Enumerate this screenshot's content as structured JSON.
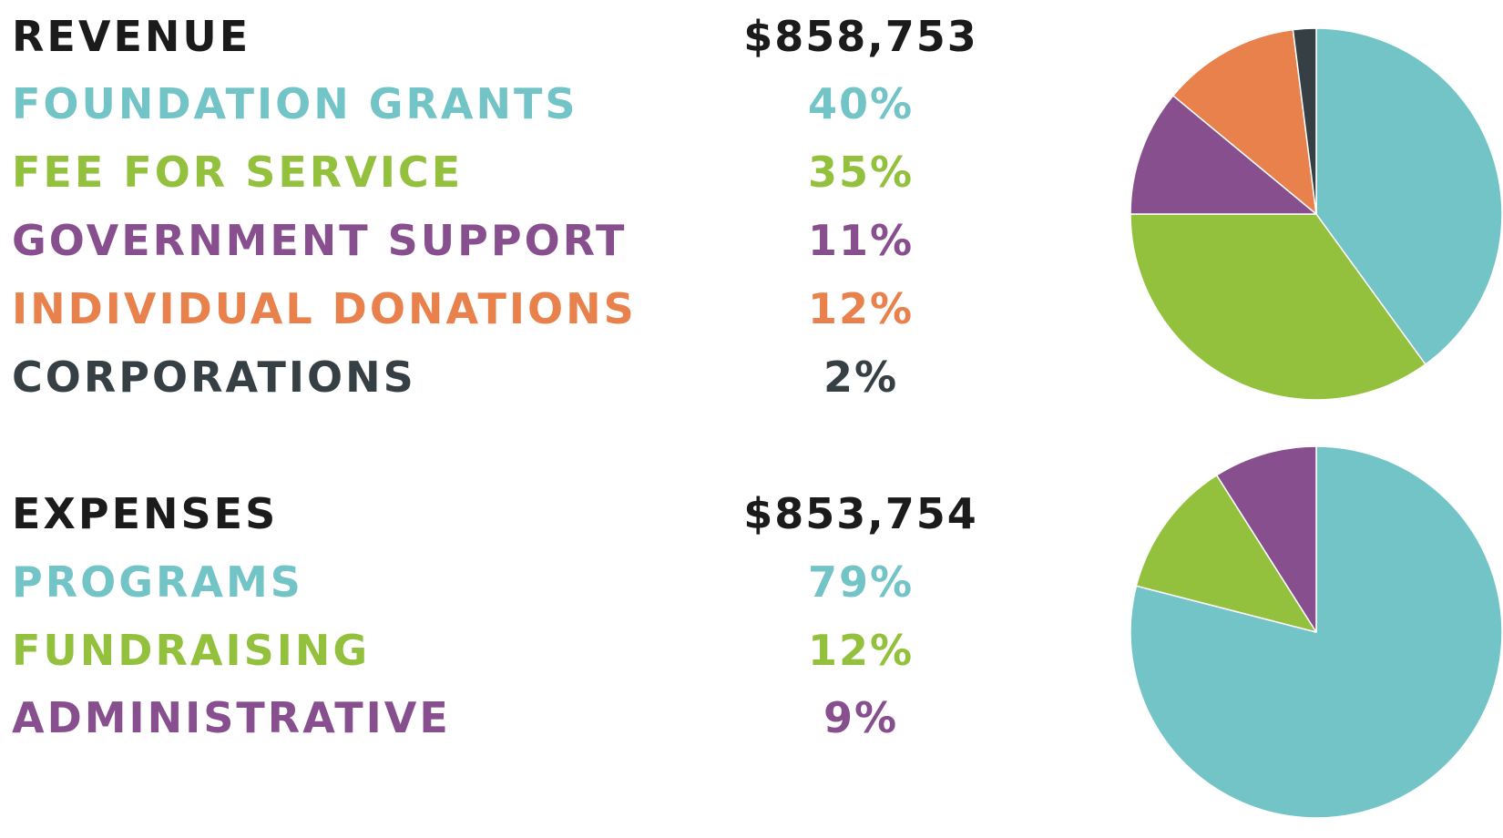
{
  "colors": {
    "teal": "#72c4c7",
    "green": "#93c13e",
    "purple": "#874f8e",
    "orange": "#e8814b",
    "dark": "#353f44",
    "black": "#1b1b1b"
  },
  "chart_data": [
    {
      "type": "pie",
      "heading": "REVENUE",
      "total": "$858,753",
      "slices": [
        {
          "label": "FOUNDATION GRANTS",
          "pct_label": "40%",
          "value": 40,
          "color": "#72c4c7"
        },
        {
          "label": "FEE FOR SERVICE",
          "pct_label": "35%",
          "value": 35,
          "color": "#93c13e"
        },
        {
          "label": "GOVERNMENT SUPPORT",
          "pct_label": "11%",
          "value": 11,
          "color": "#874f8e"
        },
        {
          "label": "INDIVIDUAL DONATIONS",
          "pct_label": "12%",
          "value": 12,
          "color": "#e8814b"
        },
        {
          "label": "CORPORATIONS",
          "pct_label": "2%",
          "value": 2,
          "color": "#353f44"
        }
      ]
    },
    {
      "type": "pie",
      "heading": "EXPENSES",
      "total": "$853,754",
      "slices": [
        {
          "label": "PROGRAMS",
          "pct_label": "79%",
          "value": 79,
          "color": "#72c4c7"
        },
        {
          "label": "FUNDRAISING",
          "pct_label": "12%",
          "value": 12,
          "color": "#93c13e"
        },
        {
          "label": "ADMINISTRATIVE",
          "pct_label": "9%",
          "value": 9,
          "color": "#874f8e"
        }
      ]
    }
  ]
}
